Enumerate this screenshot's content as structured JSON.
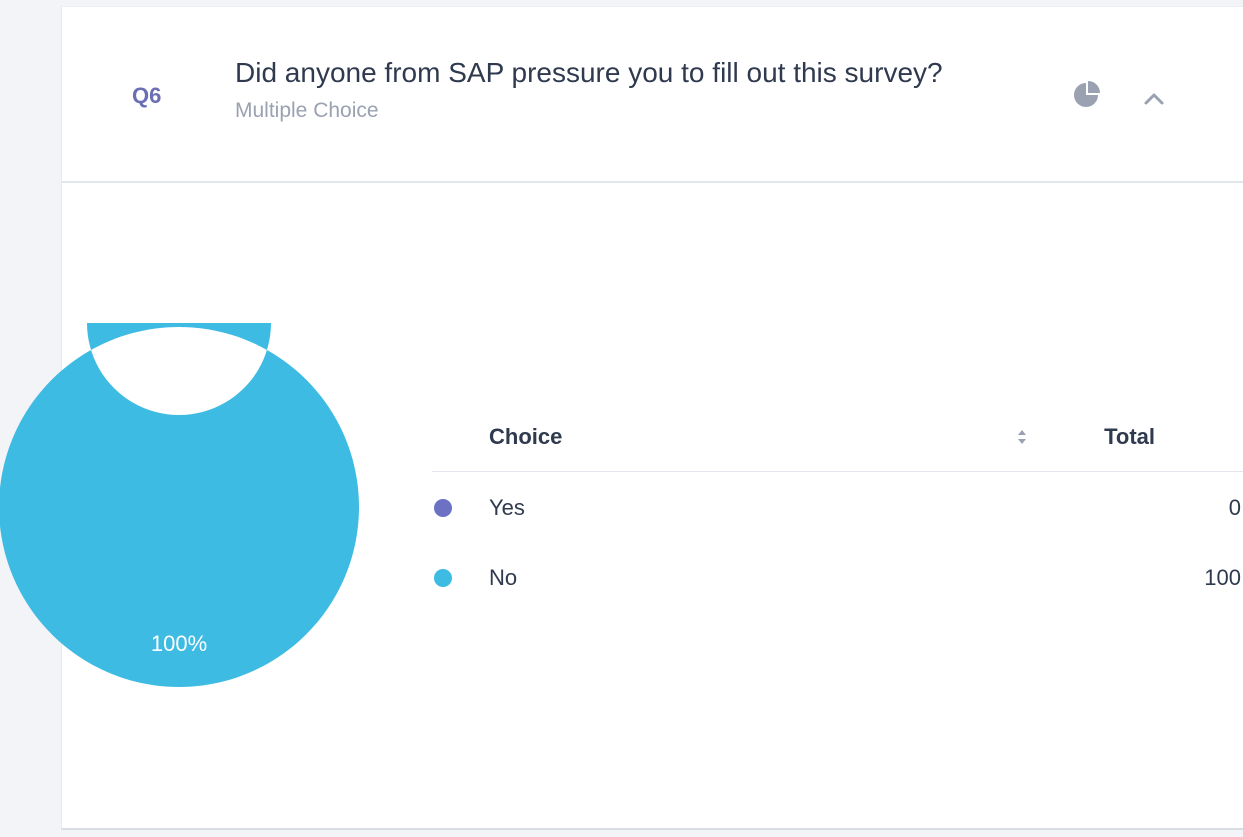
{
  "question": {
    "number": "Q6",
    "title": "Did anyone from SAP pressure you to fill out this survey?",
    "type": "Multiple Choice"
  },
  "icons": {
    "chart_toggle": "pie-chart-icon",
    "collapse": "chevron-up-icon",
    "sort": "sort-icon"
  },
  "table": {
    "headers": {
      "choice": "Choice",
      "total": "Total"
    },
    "rows": [
      {
        "choice": "Yes",
        "total": "0",
        "color": "#6c71c4"
      },
      {
        "choice": "No",
        "total": "100",
        "color": "#3dbbe3"
      }
    ]
  },
  "chart_data": {
    "type": "pie",
    "categories": [
      "Yes",
      "No"
    ],
    "values": [
      0,
      100
    ],
    "colors": [
      "#6c71c4",
      "#3dbbe3"
    ],
    "labels": [
      "",
      "100%"
    ]
  }
}
